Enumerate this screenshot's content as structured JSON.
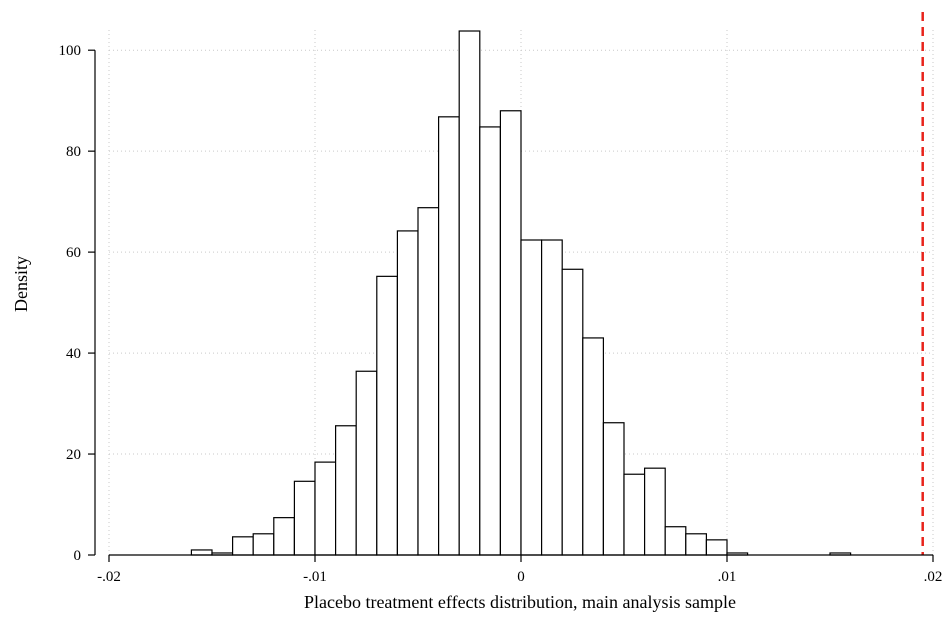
{
  "chart_data": {
    "type": "bar",
    "title": "",
    "xlabel": "Placebo treatment effects distribution, main analysis sample",
    "ylabel": "Density",
    "xlim": [
      -0.02,
      0.02
    ],
    "ylim": [
      0,
      104
    ],
    "grid": true,
    "x_ticks": [
      -0.02,
      -0.01,
      0,
      0.01,
      0.02
    ],
    "x_tick_labels": [
      "-.02",
      "-.01",
      "0",
      ".01",
      ".02"
    ],
    "y_ticks": [
      0,
      20,
      40,
      60,
      80,
      100
    ],
    "y_tick_labels": [
      "0",
      "20",
      "40",
      "60",
      "80",
      "100"
    ],
    "bin_width": 0.001,
    "bins": [
      {
        "x0": -0.016,
        "value": 1.0
      },
      {
        "x0": -0.015,
        "value": 0.4
      },
      {
        "x0": -0.014,
        "value": 3.6
      },
      {
        "x0": -0.013,
        "value": 4.2
      },
      {
        "x0": -0.012,
        "value": 7.4
      },
      {
        "x0": -0.011,
        "value": 14.6
      },
      {
        "x0": -0.01,
        "value": 18.4
      },
      {
        "x0": -0.009,
        "value": 25.6
      },
      {
        "x0": -0.008,
        "value": 36.4
      },
      {
        "x0": -0.007,
        "value": 55.2
      },
      {
        "x0": -0.006,
        "value": 64.2
      },
      {
        "x0": -0.005,
        "value": 68.8
      },
      {
        "x0": -0.004,
        "value": 86.8
      },
      {
        "x0": -0.003,
        "value": 103.8
      },
      {
        "x0": -0.002,
        "value": 84.8
      },
      {
        "x0": -0.001,
        "value": 88.0
      },
      {
        "x0": 0.0,
        "value": 62.4
      },
      {
        "x0": 0.001,
        "value": 62.4
      },
      {
        "x0": 0.002,
        "value": 56.6
      },
      {
        "x0": 0.003,
        "value": 43.0
      },
      {
        "x0": 0.004,
        "value": 26.2
      },
      {
        "x0": 0.005,
        "value": 16.0
      },
      {
        "x0": 0.006,
        "value": 17.2
      },
      {
        "x0": 0.007,
        "value": 5.6
      },
      {
        "x0": 0.008,
        "value": 4.2
      },
      {
        "x0": 0.009,
        "value": 3.0
      },
      {
        "x0": 0.01,
        "value": 0.4
      },
      {
        "x0": 0.015,
        "value": 0.4
      }
    ],
    "reference_line": {
      "x": 0.0195,
      "color": "#e8231b",
      "style": "dashed"
    }
  }
}
